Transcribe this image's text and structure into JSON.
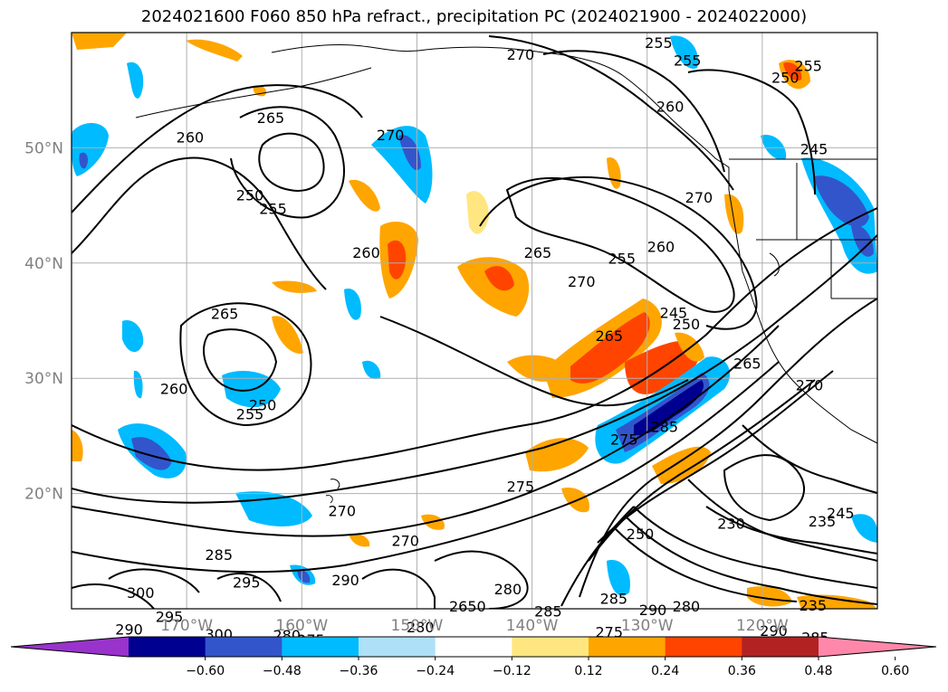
{
  "title": "2024021600 F060 850 hPa refract., precipitation PC (2024021900 - 2024022000)",
  "map": {
    "lat_labels": [
      {
        "text": "50°N",
        "lat": 50
      },
      {
        "text": "40°N",
        "lat": 40
      },
      {
        "text": "30°N",
        "lat": 30
      },
      {
        "text": "20°N",
        "lat": 20
      }
    ],
    "lon_labels": [
      {
        "text": "170°W",
        "lon": -170
      },
      {
        "text": "160°W",
        "lon": -160
      },
      {
        "text": "150°W",
        "lon": -150
      },
      {
        "text": "140°W",
        "lon": -140
      },
      {
        "text": "130°W",
        "lon": -130
      },
      {
        "text": "120°W",
        "lon": -120
      }
    ],
    "contour_labels": [
      {
        "text": "270",
        "lon": -141,
        "lat": 58
      },
      {
        "text": "255",
        "lon": -129,
        "lat": 59
      },
      {
        "text": "255",
        "lon": -126.5,
        "lat": 57.5
      },
      {
        "text": "260",
        "lon": -128,
        "lat": 53.5
      },
      {
        "text": "250",
        "lon": -118,
        "lat": 56
      },
      {
        "text": "255",
        "lon": -116,
        "lat": 57
      },
      {
        "text": "245",
        "lon": -115.5,
        "lat": 49.8
      },
      {
        "text": "270",
        "lon": -125.5,
        "lat": 45.6
      },
      {
        "text": "265",
        "lon": -162.7,
        "lat": 52.5
      },
      {
        "text": "260",
        "lon": -169.7,
        "lat": 50.8
      },
      {
        "text": "250",
        "lon": -164.5,
        "lat": 45.8
      },
      {
        "text": "255",
        "lon": -162.5,
        "lat": 44.6
      },
      {
        "text": "270",
        "lon": -152.3,
        "lat": 51
      },
      {
        "text": "260",
        "lon": -154.4,
        "lat": 40.8
      },
      {
        "text": "265",
        "lon": -139.5,
        "lat": 40.8
      },
      {
        "text": "255",
        "lon": -132.2,
        "lat": 40.3
      },
      {
        "text": "260",
        "lon": -128.8,
        "lat": 41.3
      },
      {
        "text": "270",
        "lon": -135.7,
        "lat": 38.3
      },
      {
        "text": "245",
        "lon": -127.7,
        "lat": 35.6
      },
      {
        "text": "250",
        "lon": -126.6,
        "lat": 34.6
      },
      {
        "text": "265",
        "lon": -166.7,
        "lat": 35.5
      },
      {
        "text": "265",
        "lon": -133.3,
        "lat": 33.6
      },
      {
        "text": "260",
        "lon": -171.1,
        "lat": 29
      },
      {
        "text": "250",
        "lon": -163.4,
        "lat": 27.6
      },
      {
        "text": "255",
        "lon": -164.5,
        "lat": 26.8
      },
      {
        "text": "275",
        "lon": -132,
        "lat": 24.6
      },
      {
        "text": "285",
        "lon": -128.5,
        "lat": 25.7
      },
      {
        "text": "275",
        "lon": -141,
        "lat": 20.5
      },
      {
        "text": "270",
        "lon": -156.5,
        "lat": 18.4
      },
      {
        "text": "270",
        "lon": -151,
        "lat": 15.8
      },
      {
        "text": "285",
        "lon": -167.2,
        "lat": 14.6
      },
      {
        "text": "295",
        "lon": -164.8,
        "lat": 12.2
      },
      {
        "text": "300",
        "lon": -174,
        "lat": 11.3
      },
      {
        "text": "290",
        "lon": -156.2,
        "lat": 12.4
      },
      {
        "text": "295",
        "lon": -171.5,
        "lat": 9.2
      },
      {
        "text": "290",
        "lon": -175,
        "lat": 8.1
      },
      {
        "text": "300",
        "lon": -167.2,
        "lat": 7.7
      },
      {
        "text": "280",
        "lon": -161.3,
        "lat": 7.6
      },
      {
        "text": "275",
        "lon": -159.2,
        "lat": 7.2
      },
      {
        "text": "280",
        "lon": -149.7,
        "lat": 8.3
      },
      {
        "text": "2650",
        "lon": -145.6,
        "lat": 10.1
      },
      {
        "text": "280",
        "lon": -142.1,
        "lat": 11.6
      },
      {
        "text": "285",
        "lon": -138.6,
        "lat": 9.7
      },
      {
        "text": "285",
        "lon": -132.9,
        "lat": 10.8
      },
      {
        "text": "290",
        "lon": -129.5,
        "lat": 9.8
      },
      {
        "text": "280",
        "lon": -126.6,
        "lat": 10.1
      },
      {
        "text": "275",
        "lon": -133.3,
        "lat": 7.9
      },
      {
        "text": "250",
        "lon": -130.6,
        "lat": 16.4
      },
      {
        "text": "230",
        "lon": -122.7,
        "lat": 17.3
      },
      {
        "text": "235",
        "lon": -115.6,
        "lat": 10.2
      },
      {
        "text": "290",
        "lon": -119,
        "lat": 8
      },
      {
        "text": "285",
        "lon": -115.4,
        "lat": 7.4
      },
      {
        "text": "235",
        "lon": -114.8,
        "lat": 17.5
      },
      {
        "text": "245",
        "lon": -113.2,
        "lat": 18.2
      },
      {
        "text": "270",
        "lon": -115.9,
        "lat": 29.3
      },
      {
        "text": "265",
        "lon": -121.3,
        "lat": 31.2
      }
    ]
  },
  "colorbar": {
    "labels": [
      "−0.60",
      "−0.48",
      "−0.36",
      "−0.24",
      "−0.12",
      "0.12",
      "0.24",
      "0.36",
      "0.48",
      "0.60"
    ],
    "bins": [
      {
        "color": "#9933cc"
      },
      {
        "color": "#000090"
      },
      {
        "color": "#3355cc"
      },
      {
        "color": "#00bbff"
      },
      {
        "color": "#aee0f8"
      },
      {
        "color": "#ffffff"
      },
      {
        "color": "#ffe680"
      },
      {
        "color": "#ffa500"
      },
      {
        "color": "#ff4400"
      },
      {
        "color": "#b22222"
      },
      {
        "color": "#ff88aa"
      }
    ]
  }
}
